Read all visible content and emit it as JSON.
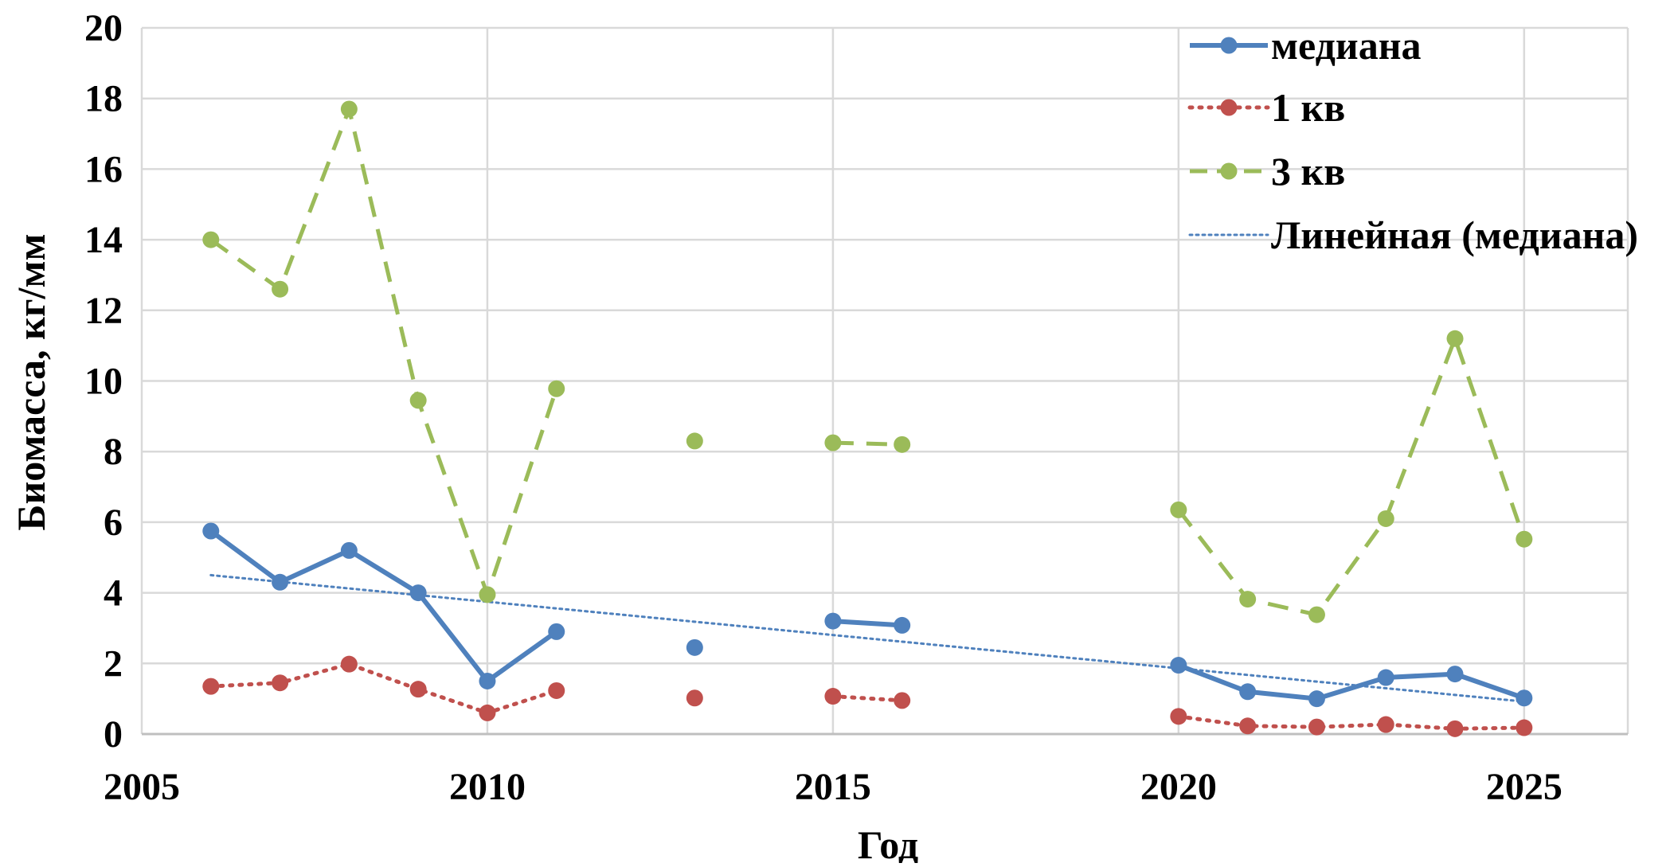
{
  "chart_data": {
    "type": "line",
    "xlabel": "Год",
    "ylabel": "Биомасса, кг/мм",
    "xlim": [
      2005,
      2026.5
    ],
    "ylim": [
      0,
      20
    ],
    "x_ticks": [
      2005,
      2010,
      2015,
      2020,
      2025
    ],
    "y_ticks": [
      0,
      2,
      4,
      6,
      8,
      10,
      12,
      14,
      16,
      18,
      20
    ],
    "grid": true,
    "legend_position": "top-right",
    "series": [
      {
        "name": "медиана",
        "color": "#4f81bd",
        "style": "solid",
        "marker": "circle",
        "points": [
          [
            2006,
            5.75
          ],
          [
            2007,
            4.3
          ],
          [
            2008,
            5.2
          ],
          [
            2009,
            4.0
          ],
          [
            2010,
            1.5
          ],
          [
            2011,
            2.9
          ],
          null,
          [
            2013,
            2.45
          ],
          null,
          [
            2015,
            3.2
          ],
          [
            2016,
            3.08
          ],
          null,
          [
            2020,
            1.95
          ],
          [
            2021,
            1.2
          ],
          [
            2022,
            1.0
          ],
          [
            2023,
            1.6
          ],
          [
            2024,
            1.7
          ],
          [
            2025,
            1.02
          ]
        ]
      },
      {
        "name": "1 кв",
        "color": "#c0504d",
        "style": "dotted",
        "marker": "circle",
        "points": [
          [
            2006,
            1.35
          ],
          [
            2007,
            1.45
          ],
          [
            2008,
            1.98
          ],
          [
            2009,
            1.27
          ],
          [
            2010,
            0.6
          ],
          [
            2011,
            1.23
          ],
          null,
          [
            2013,
            1.02
          ],
          null,
          [
            2015,
            1.07
          ],
          [
            2016,
            0.95
          ],
          null,
          [
            2020,
            0.5
          ],
          [
            2021,
            0.23
          ],
          [
            2022,
            0.2
          ],
          [
            2023,
            0.27
          ],
          [
            2024,
            0.15
          ],
          [
            2025,
            0.18
          ]
        ]
      },
      {
        "name": "3 кв",
        "color": "#9bbb59",
        "style": "dashed",
        "marker": "circle",
        "points": [
          [
            2006,
            14.0
          ],
          [
            2007,
            12.6
          ],
          [
            2008,
            17.7
          ],
          [
            2009,
            9.45
          ],
          [
            2010,
            3.95
          ],
          [
            2011,
            9.78
          ],
          null,
          [
            2013,
            8.3
          ],
          null,
          [
            2015,
            8.25
          ],
          [
            2016,
            8.2
          ],
          null,
          [
            2020,
            6.35
          ],
          [
            2021,
            3.82
          ],
          [
            2022,
            3.38
          ],
          [
            2023,
            6.1
          ],
          [
            2024,
            11.2
          ],
          [
            2025,
            5.52
          ]
        ]
      }
    ],
    "trendline": {
      "name": "Линейная (медиана)",
      "color": "#4f81bd",
      "style": "dotted",
      "x": [
        2006,
        2025
      ],
      "y": [
        4.5,
        0.92
      ]
    }
  }
}
